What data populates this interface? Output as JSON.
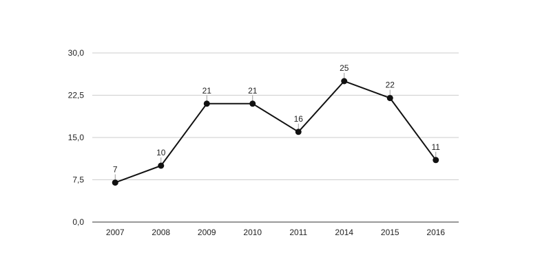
{
  "chart_data": {
    "type": "line",
    "x": [
      "2007",
      "2008",
      "2009",
      "2010",
      "2011",
      "2014",
      "2015",
      "2016"
    ],
    "series": [
      {
        "values": [
          7,
          10,
          21,
          21,
          16,
          25,
          22,
          11
        ]
      }
    ],
    "data_labels": [
      "7",
      "10",
      "21",
      "21",
      "16",
      "25",
      "22",
      "11"
    ],
    "yticks": [
      0,
      7.5,
      15,
      22.5,
      30
    ],
    "ytick_labels": [
      "0,0",
      "7,5",
      "15,0",
      "22,5",
      "30,0"
    ],
    "ylim": [
      0,
      30
    ],
    "grid": true,
    "legend": "none",
    "colors": {
      "line": "#111111",
      "marker": "#111111",
      "grid": "#cccccc",
      "axis": "#333333",
      "leader": "#999999"
    }
  }
}
